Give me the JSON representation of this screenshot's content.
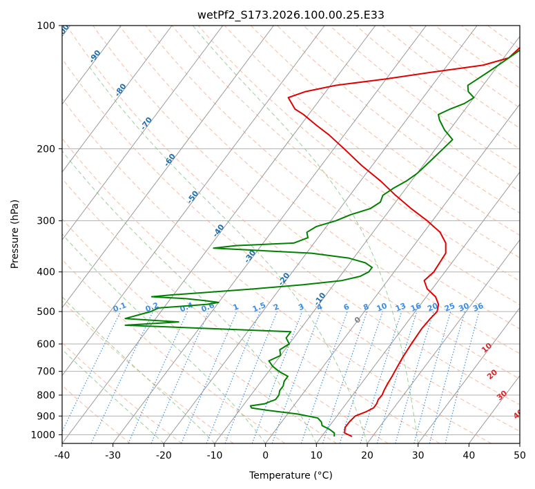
{
  "chart_data": {
    "type": "line",
    "title": "wetPf2_S173.2026.100.00.25.E33",
    "xlabel": "Temperature (°C)",
    "ylabel": "Pressure (hPa)",
    "xlim": [
      -40,
      50
    ],
    "ylim": [
      1050,
      100
    ],
    "y_scale": "log",
    "x_ticks": [
      -40,
      -30,
      -20,
      -10,
      0,
      10,
      20,
      30,
      40,
      50
    ],
    "y_ticks": [
      1000,
      900,
      800,
      700,
      600,
      500,
      400,
      300,
      200,
      100
    ],
    "grid": true,
    "colors": {
      "temperature": "#e00000",
      "dewpoint": "#008000",
      "skewed_isotherm": "#888888",
      "dry_adiabat": "#f4a582",
      "moist_adiabat": "#8fc98f",
      "mixing_ratio": "#3a8ee6",
      "dry_adiabat_far": "#d9c2a7",
      "isotherm_label": "#1f6fb0",
      "mixing_label": "#3a8ee6",
      "zero_label": "#808080",
      "hot_label": "#d62728"
    },
    "series": [
      {
        "key": "temperature",
        "pressure": [
          1010,
          990,
          960,
          930,
          900,
          880,
          860,
          840,
          820,
          800,
          780,
          750,
          720,
          700,
          650,
          600,
          550,
          520,
          500,
          480,
          460,
          440,
          420,
          400,
          380,
          360,
          340,
          320,
          300,
          280,
          260,
          240,
          220,
          200,
          185,
          175,
          165,
          160,
          150,
          145,
          140,
          135,
          130,
          125,
          120,
          110,
          100
        ],
        "values": [
          16.0,
          14.0,
          13.3,
          13.3,
          13.6,
          15.0,
          16.0,
          16.0,
          15.7,
          15.8,
          15.5,
          15.2,
          15.0,
          14.8,
          14.3,
          14.0,
          13.8,
          14.0,
          14.3,
          13.5,
          11.8,
          9.0,
          7.2,
          7.8,
          7.6,
          7.4,
          5.9,
          3.2,
          -1.0,
          -6.0,
          -11.0,
          -16.0,
          -22.0,
          -28.0,
          -33.0,
          -37.0,
          -41.0,
          -43.5,
          -46.5,
          -44.0,
          -39.0,
          -30.0,
          -22.0,
          -13.0,
          -9.0,
          -8.0,
          -8.0
        ]
      },
      {
        "key": "dewpoint",
        "pressure": [
          1010,
          990,
          970,
          950,
          930,
          910,
          890,
          870,
          860,
          850,
          840,
          830,
          820,
          810,
          800,
          780,
          760,
          740,
          720,
          700,
          680,
          660,
          640,
          620,
          600,
          580,
          560,
          540,
          530,
          520,
          500,
          490,
          480,
          475,
          470,
          465,
          460,
          455,
          450,
          440,
          430,
          420,
          410,
          400,
          390,
          380,
          370,
          360,
          350,
          345,
          340,
          330,
          320,
          310,
          300,
          290,
          280,
          270,
          260,
          250,
          240,
          230,
          220,
          210,
          200,
          190,
          180,
          170,
          165,
          160,
          155,
          150,
          145,
          140,
          135,
          130,
          125,
          120,
          115,
          110,
          100
        ],
        "values": [
          12.5,
          12.0,
          10.5,
          8.5,
          7.8,
          6.5,
          2.0,
          -5.0,
          -8.0,
          -8.5,
          -6.0,
          -5.3,
          -4.5,
          -4.5,
          -4.5,
          -5.0,
          -5.0,
          -5.5,
          -5.5,
          -8.0,
          -10.0,
          -11.5,
          -10.0,
          -11.0,
          -10.0,
          -11.5,
          -11.5,
          -45.0,
          -35.0,
          -46.0,
          -42.0,
          -41.0,
          -32.0,
          -30.0,
          -33.0,
          -37.0,
          -44.0,
          -40.0,
          -35.0,
          -25.0,
          -16.0,
          -9.0,
          -6.0,
          -5.0,
          -5.0,
          -7.0,
          -11.0,
          -19.0,
          -39.0,
          -35.0,
          -24.0,
          -22.0,
          -23.0,
          -22.0,
          -19.0,
          -17.0,
          -14.0,
          -13.0,
          -13.5,
          -12.5,
          -11.0,
          -10.0,
          -9.5,
          -9.0,
          -8.5,
          -8.0,
          -11.0,
          -13.5,
          -14.5,
          -13.0,
          -11.0,
          -10.0,
          -12.0,
          -13.0,
          -12.0,
          -11.0,
          -10.0,
          -9.0,
          -8.0,
          -5.5,
          -1.5
        ]
      }
    ],
    "background": {
      "isotherm_labels": [
        "-100",
        "-90",
        "-80",
        "-70",
        "-60",
        "-50",
        "-40",
        "-30",
        "-20",
        "-10"
      ],
      "mixing_ratio_labels": [
        "0.1",
        "0.2",
        "0.4",
        "0.6",
        "1",
        "1.5",
        "2",
        "3",
        "4",
        "6",
        "8",
        "10",
        "13",
        "16",
        "20",
        "25",
        "30",
        "36"
      ],
      "extra_labels": [
        "0",
        "10",
        "20",
        "30",
        "40"
      ]
    }
  }
}
